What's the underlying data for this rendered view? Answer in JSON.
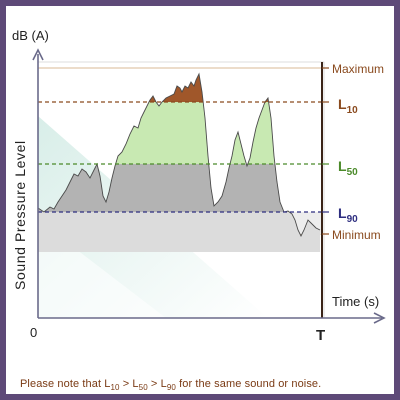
{
  "diagram": {
    "y_axis_unit": "dB (A)",
    "y_axis_title": "Sound Pressure Level",
    "x_axis_title": "Time (s)",
    "origin_label": "0",
    "end_label": "T",
    "levels": [
      {
        "name": "maximum",
        "label": "Maximum",
        "sub": "",
        "color": "#8a4a1e"
      },
      {
        "name": "l10",
        "label": "L",
        "sub": "10",
        "color": "#8a4a1e"
      },
      {
        "name": "l50",
        "label": "L",
        "sub": "50",
        "color": "#4b8a2a"
      },
      {
        "name": "l90",
        "label": "L",
        "sub": "90",
        "color": "#2e2e80"
      },
      {
        "name": "minimum",
        "label": "Minimum",
        "sub": "",
        "color": "#8a4a1e"
      }
    ],
    "colors": {
      "above_l10": "#a0572a",
      "between_l50_l10": "#c6e8b0",
      "between_l90_l50": "#b5b5b5",
      "below_l90": "#dedede",
      "background_gradient": "#cfe8e2",
      "axis": "#6a6a8a"
    }
  },
  "caption": {
    "prefix": "Please note that L",
    "sub1": "10",
    "gt1": " > L",
    "sub2": "50",
    "gt2": " > L",
    "sub3": "90",
    "suffix": " for the same sound or noise."
  }
}
